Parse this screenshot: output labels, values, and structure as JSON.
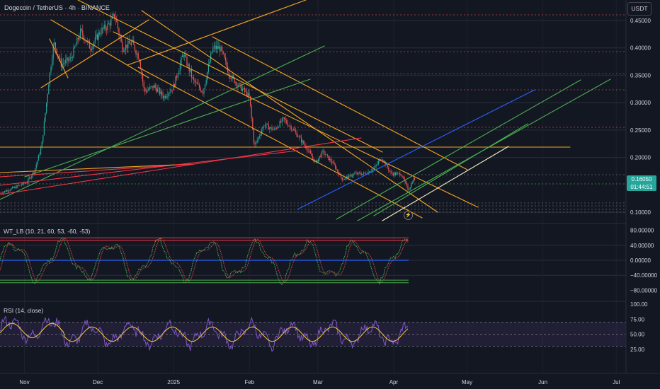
{
  "header": {
    "symbol": "Dogecoin / TetherUS · 4h · BINANCE",
    "currency_button": "USDT"
  },
  "price_tag": {
    "price": "0.16050",
    "countdown": "01:44:51",
    "color": "#26a69a"
  },
  "panes": {
    "wt_label": "WT_LB (10, 21, 60, 53, -60, -53)",
    "rsi_label": "RSI (14, close)"
  },
  "price_axis": {
    "labels": [
      "0.45000",
      "0.40000",
      "0.35000",
      "0.30000",
      "0.25000",
      "0.20000",
      "0.10000"
    ],
    "values": [
      0.45,
      0.4,
      0.35,
      0.3,
      0.25,
      0.2,
      0.1
    ]
  },
  "wt_axis": {
    "labels": [
      "80.00000",
      "40.00000",
      "0.00000",
      "−40.00000",
      "−80.00000"
    ],
    "values": [
      80,
      40,
      0,
      -40,
      -80
    ],
    "levels": {
      "ob1": 60,
      "ob2": 53,
      "os1": -60,
      "os2": -53
    }
  },
  "rsi_axis": {
    "labels": [
      "100.00",
      "75.00",
      "50.00",
      "25.00"
    ],
    "values": [
      100,
      75,
      50,
      25
    ],
    "band": [
      30,
      70
    ]
  },
  "time_axis": {
    "labels": [
      "Nov",
      "Dec",
      "2025",
      "Feb",
      "Mar",
      "Apr",
      "May",
      "Jun",
      "Jul"
    ]
  },
  "colors": {
    "background": "#131722",
    "grid": "#2a2e39",
    "up_candle": "#26a69a",
    "down_candle": "#ef5350",
    "orange_lines": "#f5a623",
    "green_lines": "#4caf50",
    "red_lines": "#f23645",
    "blue_line": "#2962ff",
    "white_line": "#f5f0c8",
    "rsi_line": "#7e57c2",
    "rsi_ma": "#f7c948"
  },
  "chart_data": {
    "type": "candlestick",
    "symbol": "DOGE/USDT",
    "interval": "4h",
    "close_points": [
      {
        "t": "2024-10-22",
        "p": 0.135
      },
      {
        "t": "2024-10-28",
        "p": 0.145
      },
      {
        "t": "2024-11-02",
        "p": 0.155
      },
      {
        "t": "2024-11-05",
        "p": 0.175
      },
      {
        "t": "2024-11-08",
        "p": 0.22
      },
      {
        "t": "2024-11-11",
        "p": 0.34
      },
      {
        "t": "2024-11-13",
        "p": 0.41
      },
      {
        "t": "2024-11-16",
        "p": 0.37
      },
      {
        "t": "2024-11-20",
        "p": 0.38
      },
      {
        "t": "2024-11-24",
        "p": 0.43
      },
      {
        "t": "2024-11-28",
        "p": 0.4
      },
      {
        "t": "2024-12-02",
        "p": 0.43
      },
      {
        "t": "2024-12-05",
        "p": 0.44
      },
      {
        "t": "2024-12-08",
        "p": 0.46
      },
      {
        "t": "2024-12-11",
        "p": 0.4
      },
      {
        "t": "2024-12-15",
        "p": 0.41
      },
      {
        "t": "2024-12-18",
        "p": 0.38
      },
      {
        "t": "2024-12-20",
        "p": 0.32
      },
      {
        "t": "2024-12-24",
        "p": 0.33
      },
      {
        "t": "2024-12-28",
        "p": 0.31
      },
      {
        "t": "2025-01-01",
        "p": 0.33
      },
      {
        "t": "2025-01-05",
        "p": 0.39
      },
      {
        "t": "2025-01-09",
        "p": 0.34
      },
      {
        "t": "2025-01-13",
        "p": 0.32
      },
      {
        "t": "2025-01-17",
        "p": 0.4
      },
      {
        "t": "2025-01-20",
        "p": 0.4
      },
      {
        "t": "2025-01-24",
        "p": 0.35
      },
      {
        "t": "2025-01-28",
        "p": 0.33
      },
      {
        "t": "2025-02-01",
        "p": 0.31
      },
      {
        "t": "2025-02-03",
        "p": 0.22
      },
      {
        "t": "2025-02-07",
        "p": 0.26
      },
      {
        "t": "2025-02-11",
        "p": 0.25
      },
      {
        "t": "2025-02-15",
        "p": 0.27
      },
      {
        "t": "2025-02-19",
        "p": 0.25
      },
      {
        "t": "2025-02-24",
        "p": 0.22
      },
      {
        "t": "2025-02-28",
        "p": 0.19
      },
      {
        "t": "2025-03-03",
        "p": 0.21
      },
      {
        "t": "2025-03-07",
        "p": 0.19
      },
      {
        "t": "2025-03-11",
        "p": 0.16
      },
      {
        "t": "2025-03-16",
        "p": 0.17
      },
      {
        "t": "2025-03-20",
        "p": 0.17
      },
      {
        "t": "2025-03-24",
        "p": 0.18
      },
      {
        "t": "2025-03-27",
        "p": 0.2
      },
      {
        "t": "2025-03-31",
        "p": 0.17
      },
      {
        "t": "2025-04-04",
        "p": 0.17
      },
      {
        "t": "2025-04-07",
        "p": 0.14
      },
      {
        "t": "2025-04-09",
        "p": 0.16
      },
      {
        "t": "2025-04-10",
        "p": 0.1605
      }
    ]
  }
}
